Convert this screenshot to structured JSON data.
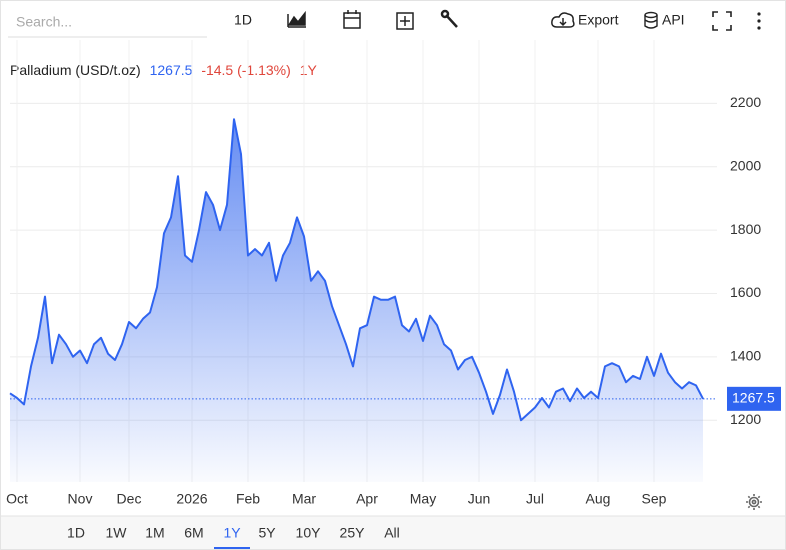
{
  "toolbar": {
    "search_placeholder": "Search...",
    "interval": "1D",
    "export": "Export",
    "api": "API"
  },
  "ranges": {
    "options": [
      "1D",
      "1W",
      "1M",
      "6M",
      "1Y",
      "5Y",
      "10Y",
      "25Y",
      "All"
    ],
    "active": 4
  },
  "chart_data": {
    "type": "line",
    "title": "Palladium (USD/t.oz)",
    "price": 1267.5,
    "change": "-14.5 (-1.13%)",
    "period": "1Y",
    "categories": [
      null,
      "Oct",
      null,
      null,
      null,
      null,
      null,
      null,
      null,
      null,
      "Nov",
      null,
      null,
      null,
      null,
      null,
      null,
      "Dec",
      null,
      null,
      null,
      null,
      null,
      null,
      null,
      null,
      "2026",
      null,
      null,
      null,
      null,
      null,
      null,
      null,
      "Feb",
      null,
      null,
      null,
      null,
      null,
      null,
      null,
      "Mar",
      null,
      null,
      null,
      null,
      null,
      null,
      null,
      null,
      "Apr",
      null,
      null,
      null,
      null,
      null,
      null,
      null,
      "May",
      null,
      null,
      null,
      null,
      null,
      null,
      null,
      "Jun",
      null,
      null,
      null,
      null,
      null,
      null,
      null,
      "Jul",
      null,
      null,
      null,
      null,
      null,
      null,
      null,
      null,
      "Aug",
      null,
      null,
      null,
      null,
      null,
      null,
      null,
      "Sep",
      null,
      null,
      null,
      null,
      null,
      null,
      null
    ],
    "series": [
      {
        "name": "Palladium",
        "color": "#2f64f0",
        "values": [
          1285,
          1270,
          1250,
          1370,
          1460,
          1590,
          1380,
          1470,
          1440,
          1400,
          1420,
          1380,
          1440,
          1460,
          1410,
          1390,
          1440,
          1510,
          1490,
          1520,
          1540,
          1620,
          1790,
          1840,
          1970,
          1720,
          1700,
          1800,
          1920,
          1880,
          1800,
          1880,
          2150,
          2040,
          1720,
          1740,
          1720,
          1760,
          1640,
          1720,
          1760,
          1840,
          1780,
          1640,
          1670,
          1640,
          1560,
          1500,
          1440,
          1370,
          1490,
          1500,
          1590,
          1580,
          1580,
          1590,
          1500,
          1480,
          1520,
          1450,
          1530,
          1500,
          1440,
          1420,
          1360,
          1390,
          1400,
          1350,
          1290,
          1220,
          1280,
          1360,
          1290,
          1200,
          1220,
          1240,
          1270,
          1240,
          1290,
          1300,
          1260,
          1300,
          1270,
          1290,
          1270,
          1370,
          1380,
          1370,
          1320,
          1340,
          1330,
          1400,
          1340,
          1410,
          1350,
          1320,
          1300,
          1320,
          1310,
          1267.5
        ]
      }
    ],
    "ylim": [
      1005,
      2400
    ],
    "yticks": [
      1200,
      1400,
      1600,
      1800,
      2000,
      2200
    ],
    "grid": true
  }
}
